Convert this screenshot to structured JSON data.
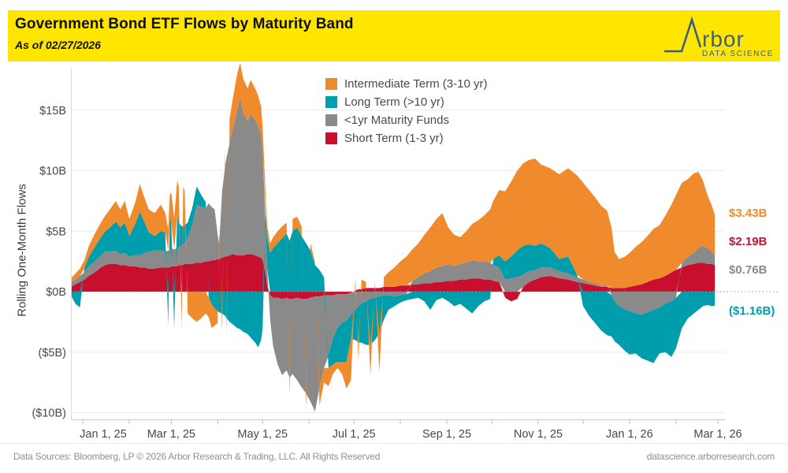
{
  "header": {
    "title": "Government Bond ETF Flows by Maturity Band",
    "subtitle": "As of 02/27/2026",
    "banner_color": "#FFE600",
    "logo": {
      "brand": "Arbor",
      "tagline": "DATA SCIENCE",
      "color": "#3E5C87"
    }
  },
  "footer": {
    "left": "Data Sources: Bloomberg, LP © 2026 Arbor Research & Trading, LLC. All Rights Reserved",
    "right": "datascience.arborresearch.com"
  },
  "chart_data": {
    "type": "area",
    "stacked": true,
    "title": "Government Bond ETF Flows by Maturity Band",
    "ylabel": "Rolling One-Month Flows",
    "y_unit": "$B",
    "ylim": [
      -10.5,
      18.5
    ],
    "x_unit": "days since 2025-01-01",
    "x_range": [
      -8,
      424
    ],
    "grid": "horizontal",
    "legend_position": "top-center",
    "yticks": [
      {
        "v": 15,
        "label": "$15B"
      },
      {
        "v": 10,
        "label": "$10B"
      },
      {
        "v": 5,
        "label": "$5B"
      },
      {
        "v": 0,
        "label": "$0B"
      },
      {
        "v": -5,
        "label": "($5B)"
      },
      {
        "v": -10,
        "label": "($10B)"
      }
    ],
    "xticks": [
      {
        "day": 0,
        "label": "Jan 1, 25"
      },
      {
        "day": 59,
        "label": "Mar 1, 25"
      },
      {
        "day": 120,
        "label": "May 1, 25"
      },
      {
        "day": 181,
        "label": "Jul 1, 25"
      },
      {
        "day": 243,
        "label": "Sep 1, 25"
      },
      {
        "day": 304,
        "label": "Nov 1, 25"
      },
      {
        "day": 365,
        "label": "Jan 1, 26"
      },
      {
        "day": 424,
        "label": "Mar 1, 26"
      }
    ],
    "xticks_minor": [
      31,
      90,
      151,
      212,
      273,
      334,
      396
    ],
    "x_days": [
      -8,
      -5,
      -2,
      1,
      4,
      8,
      12,
      15,
      18,
      22,
      25,
      28,
      31,
      35,
      38,
      41,
      44,
      48,
      52,
      55,
      57,
      58,
      59,
      61,
      63,
      64,
      66,
      67,
      68,
      70,
      73,
      76,
      79,
      82,
      84,
      86,
      88,
      90,
      91,
      93,
      95,
      96,
      98,
      100,
      103,
      105,
      107,
      110,
      112,
      115,
      117,
      119,
      120,
      122,
      123,
      125,
      127,
      130,
      133,
      136,
      138,
      140,
      143,
      146,
      149,
      152,
      155,
      158,
      161,
      164,
      167,
      170,
      173,
      176,
      179,
      182,
      184,
      186,
      189,
      192,
      195,
      198,
      201,
      204,
      208,
      212,
      216,
      220,
      224,
      228,
      232,
      236,
      240,
      244,
      248,
      252,
      256,
      260,
      264,
      268,
      272,
      274,
      278,
      282,
      286,
      290,
      294,
      298,
      302,
      306,
      312,
      318,
      324,
      330,
      334,
      338,
      342,
      346,
      350,
      353,
      355,
      358,
      362,
      365,
      369,
      373,
      377,
      381,
      385,
      389,
      393,
      396,
      400,
      404,
      408,
      411,
      414,
      417,
      420,
      422
    ],
    "series": [
      {
        "id": "short",
        "name": "Short Term (1-3 yr)",
        "color": "#C8102E",
        "values": [
          0.4,
          0.6,
          0.8,
          1.0,
          1.3,
          1.6,
          2.0,
          2.2,
          2.3,
          2.3,
          2.2,
          2.2,
          2.1,
          2.1,
          2.0,
          2.0,
          1.9,
          1.9,
          2.0,
          2.0,
          2.0,
          2.0,
          2.1,
          2.1,
          2.1,
          2.2,
          2.2,
          2.2,
          2.3,
          2.3,
          2.3,
          2.4,
          2.4,
          2.5,
          2.5,
          2.6,
          2.6,
          2.7,
          2.7,
          2.8,
          2.9,
          2.9,
          3.0,
          3.1,
          3.0,
          3.0,
          3.0,
          3.1,
          3.1,
          3.0,
          2.9,
          2.8,
          2.6,
          1.5,
          0.5,
          -0.3,
          -0.5,
          -0.5,
          -0.6,
          -0.5,
          -0.6,
          -0.6,
          -0.5,
          -0.6,
          -0.6,
          -0.5,
          -0.4,
          -0.4,
          -0.3,
          -0.3,
          -0.3,
          -0.2,
          -0.2,
          -0.2,
          -0.1,
          0.1,
          0.2,
          0.2,
          0.3,
          0.3,
          0.3,
          0.3,
          0.4,
          0.4,
          0.4,
          0.5,
          0.5,
          0.6,
          0.6,
          0.7,
          0.7,
          0.8,
          0.8,
          0.9,
          0.9,
          1.0,
          1.0,
          1.1,
          1.1,
          1.0,
          1.0,
          0.9,
          0.8,
          -0.5,
          -0.8,
          -0.6,
          0.4,
          0.8,
          1.0,
          1.2,
          1.3,
          1.1,
          1.0,
          0.8,
          0.7,
          0.6,
          0.5,
          0.4,
          0.4,
          0.3,
          0.3,
          0.3,
          0.3,
          0.4,
          0.5,
          0.6,
          0.8,
          1.0,
          1.1,
          1.3,
          1.6,
          1.8,
          2.0,
          2.2,
          2.3,
          2.4,
          2.4,
          2.3,
          2.3,
          2.19
        ]
      },
      {
        "id": "under1yr",
        "name": "<1yr Maturity Funds",
        "color": "#8A8A8A",
        "values": [
          0.3,
          0.4,
          0.5,
          0.6,
          0.8,
          0.9,
          1.0,
          1.1,
          1.0,
          1.1,
          0.9,
          1.0,
          0.8,
          0.9,
          1.0,
          1.2,
          1.4,
          1.5,
          1.4,
          1.3,
          1.4,
          1.4,
          1.5,
          1.4,
          1.5,
          1.5,
          1.6,
          1.7,
          1.8,
          2.2,
          3.2,
          4.8,
          4.6,
          4.4,
          4.8,
          4.4,
          4.2,
          2.0,
          1.2,
          5.5,
          7.5,
          8.2,
          9.3,
          10.3,
          12.0,
          13.0,
          11.8,
          11.0,
          11.6,
          11.2,
          10.8,
          10.2,
          9.0,
          4.0,
          1.5,
          -2.0,
          -4.0,
          -5.5,
          -6.3,
          -6.0,
          -6.5,
          -6.2,
          -6.8,
          -7.3,
          -7.8,
          -8.6,
          -9.5,
          -7.5,
          -6.0,
          -5.0,
          -3.5,
          -2.8,
          -2.4,
          -2.2,
          -1.8,
          -1.5,
          -1.2,
          -1.0,
          -0.8,
          -0.6,
          -0.5,
          -0.4,
          -0.3,
          -0.3,
          -0.4,
          -0.3,
          -0.2,
          0.3,
          0.6,
          0.8,
          1.0,
          1.2,
          1.3,
          1.4,
          1.2,
          1.3,
          1.4,
          1.5,
          1.4,
          1.5,
          1.4,
          1.3,
          1.2,
          1.0,
          1.1,
          1.2,
          1.0,
          0.9,
          0.8,
          0.8,
          0.7,
          0.6,
          0.5,
          0.4,
          0.3,
          0.2,
          0.2,
          0.1,
          0.1,
          -0.3,
          -0.8,
          -1.2,
          -1.5,
          -1.6,
          -1.8,
          -1.9,
          -1.7,
          -1.5,
          -1.3,
          -1.0,
          -0.8,
          -0.5,
          0.4,
          0.7,
          0.9,
          1.2,
          1.4,
          1.3,
          1.0,
          0.76
        ]
      },
      {
        "id": "long",
        "name": "Long Term (>10 yr)",
        "color": "#009EAD",
        "values": [
          -0.3,
          -1.0,
          -1.3,
          0.3,
          0.8,
          1.2,
          1.5,
          1.7,
          2.0,
          2.4,
          2.2,
          2.5,
          1.7,
          2.6,
          3.6,
          2.6,
          1.6,
          1.2,
          1.6,
          1.6,
          -2.8,
          2.6,
          2.2,
          -3.0,
          2.8,
          2.0,
          1.6,
          1.5,
          1.4,
          1.2,
          1.4,
          1.5,
          1.0,
          0.5,
          -0.5,
          -1.0,
          -1.4,
          -1.6,
          -1.7,
          -1.8,
          -2.0,
          -2.2,
          -2.5,
          -2.7,
          -3.0,
          -3.1,
          -3.3,
          -3.5,
          -3.8,
          -4.2,
          -4.6,
          -4.0,
          -3.0,
          1.0,
          2.5,
          3.2,
          3.6,
          4.0,
          4.4,
          4.8,
          4.2,
          5.0,
          5.3,
          4.6,
          4.0,
          3.4,
          2.2,
          1.8,
          1.2,
          -1.0,
          -2.2,
          -2.8,
          -3.2,
          -3.4,
          -2.0,
          -2.5,
          -3.0,
          -3.2,
          -3.6,
          -3.8,
          -3.5,
          -3.0,
          -2.0,
          -1.2,
          -0.8,
          -0.6,
          -0.5,
          -0.6,
          -0.5,
          -0.8,
          -1.5,
          -0.7,
          -0.5,
          -0.8,
          -1.2,
          -1.0,
          -1.4,
          -1.8,
          -1.2,
          -0.8,
          -0.6,
          0.5,
          1.0,
          1.5,
          1.8,
          2.2,
          2.4,
          2.2,
          2.0,
          2.0,
          1.6,
          1.0,
          1.4,
          0.2,
          -1.2,
          -2.0,
          -2.6,
          -3.2,
          -3.6,
          -3.4,
          -3.3,
          -3.2,
          -3.4,
          -3.6,
          -3.3,
          -3.6,
          -4.0,
          -4.4,
          -3.8,
          -4.0,
          -4.6,
          -4.2,
          -3.0,
          -2.2,
          -1.8,
          -1.5,
          -1.2,
          -1.1,
          -1.2,
          -1.16
        ]
      },
      {
        "id": "intermediate",
        "name": "Intermediate Term (3-10 yr)",
        "color": "#F08B2D",
        "values": [
          0.4,
          0.5,
          0.6,
          0.7,
          0.9,
          1.1,
          1.2,
          1.3,
          1.5,
          1.7,
          1.5,
          1.8,
          1.4,
          1.8,
          2.3,
          2.0,
          1.9,
          1.9,
          2.2,
          1.6,
          1.8,
          2.0,
          2.4,
          2.6,
          2.8,
          3.0,
          -3.0,
          3.3,
          2.8,
          -1.8,
          -2.2,
          -2.5,
          -2.2,
          -1.8,
          -1.6,
          -2.0,
          -1.4,
          -1.0,
          1.0,
          -1.5,
          1.5,
          -1.5,
          2.0,
          2.5,
          3.0,
          2.9,
          2.8,
          2.7,
          2.8,
          2.6,
          2.5,
          2.3,
          2.0,
          1.5,
          1.0,
          0.8,
          0.9,
          1.0,
          1.0,
          0.9,
          -1.5,
          1.0,
          0.9,
          0.8,
          -1.2,
          0.6,
          0.2,
          -1.5,
          -1.2,
          -1.5,
          -0.8,
          -0.5,
          -1.0,
          -2.2,
          -3.4,
          1.0,
          -1.5,
          0.8,
          0.5,
          -2.5,
          0.6,
          -3.3,
          0.8,
          1.2,
          1.6,
          2.0,
          2.4,
          2.6,
          2.8,
          3.2,
          3.6,
          4.0,
          4.4,
          3.0,
          2.6,
          2.2,
          2.6,
          3.0,
          3.4,
          3.8,
          4.4,
          4.8,
          5.4,
          5.8,
          6.2,
          6.6,
          6.8,
          7.0,
          7.2,
          6.5,
          6.6,
          7.0,
          7.3,
          8.2,
          8.0,
          7.6,
          7.1,
          6.6,
          6.2,
          5.0,
          3.0,
          2.4,
          2.6,
          2.8,
          3.2,
          3.5,
          3.8,
          4.2,
          4.4,
          5.0,
          5.6,
          6.2,
          6.6,
          6.4,
          6.6,
          6.3,
          5.4,
          4.4,
          3.8,
          3.43
        ]
      }
    ],
    "legend": [
      {
        "id": "intermediate",
        "label": "Intermediate Term (3-10 yr)",
        "color": "#F08B2D"
      },
      {
        "id": "long",
        "label": "Long Term (>10 yr)",
        "color": "#009EAD"
      },
      {
        "id": "under1yr",
        "label": "<1yr Maturity Funds",
        "color": "#8A8A8A"
      },
      {
        "id": "short",
        "label": "Short Term (1-3 yr)",
        "color": "#C8102E"
      }
    ],
    "end_labels": [
      {
        "id": "intermediate",
        "text": "$3.43B",
        "color": "#F08B2D"
      },
      {
        "id": "short",
        "text": "$2.19B",
        "color": "#C8102E"
      },
      {
        "id": "under1yr",
        "text": "$0.76B",
        "color": "#8A8A8A"
      },
      {
        "id": "long",
        "text": "($1.16B)",
        "color": "#009EAD"
      }
    ],
    "zero_line": {
      "style": "dotted"
    }
  }
}
